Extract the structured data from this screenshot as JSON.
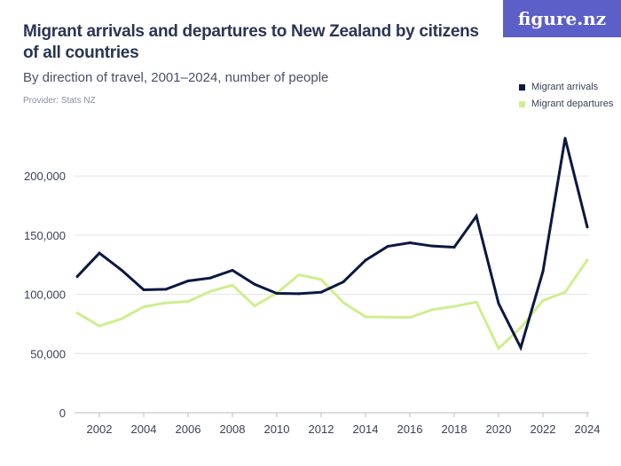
{
  "header": {
    "title": "Migrant arrivals and departures to New Zealand by citizens of all countries",
    "subtitle": "By direction of travel, 2001–2024, number of people",
    "provider": "Provider: Stats NZ",
    "logo": "figure.nz"
  },
  "chart_data": {
    "type": "line",
    "title": "Migrant arrivals and departures to New Zealand by citizens of all countries",
    "subtitle": "By direction of travel, 2001–2024, number of people",
    "x": [
      2001,
      2002,
      2003,
      2004,
      2005,
      2006,
      2007,
      2008,
      2009,
      2010,
      2011,
      2012,
      2013,
      2014,
      2015,
      2016,
      2017,
      2018,
      2019,
      2020,
      2021,
      2022,
      2023,
      2024
    ],
    "series": [
      {
        "name": "Migrant arrivals",
        "color": "#0b1840",
        "values": [
          115000,
          134800,
          120500,
          103800,
          104300,
          111300,
          113800,
          120300,
          108500,
          100800,
          100500,
          101800,
          110500,
          128800,
          140500,
          143500,
          140800,
          139800,
          166000,
          92300,
          55000,
          119300,
          231800,
          156800
        ]
      },
      {
        "name": "Migrant departures",
        "color": "#cdef8e",
        "values": [
          84300,
          73300,
          79300,
          89500,
          92800,
          94000,
          102500,
          107800,
          90300,
          101000,
          116500,
          112500,
          93000,
          81000,
          80800,
          80500,
          87000,
          89800,
          93500,
          54300,
          71800,
          94800,
          101800,
          129000
        ]
      }
    ],
    "yticks": [
      0,
      50000,
      100000,
      150000,
      200000
    ],
    "ytick_labels": [
      "0",
      "50,000",
      "100,000",
      "150,000",
      "200,000"
    ],
    "xticks": [
      2002,
      2004,
      2006,
      2008,
      2010,
      2012,
      2014,
      2016,
      2018,
      2020,
      2022,
      2024
    ],
    "xtick_labels": [
      "2002",
      "2004",
      "2006",
      "2008",
      "2010",
      "2012",
      "2014",
      "2016",
      "2018",
      "2020",
      "2022",
      "2024"
    ],
    "ylim": [
      0,
      240000
    ],
    "grid": true,
    "legend": "top-right"
  }
}
